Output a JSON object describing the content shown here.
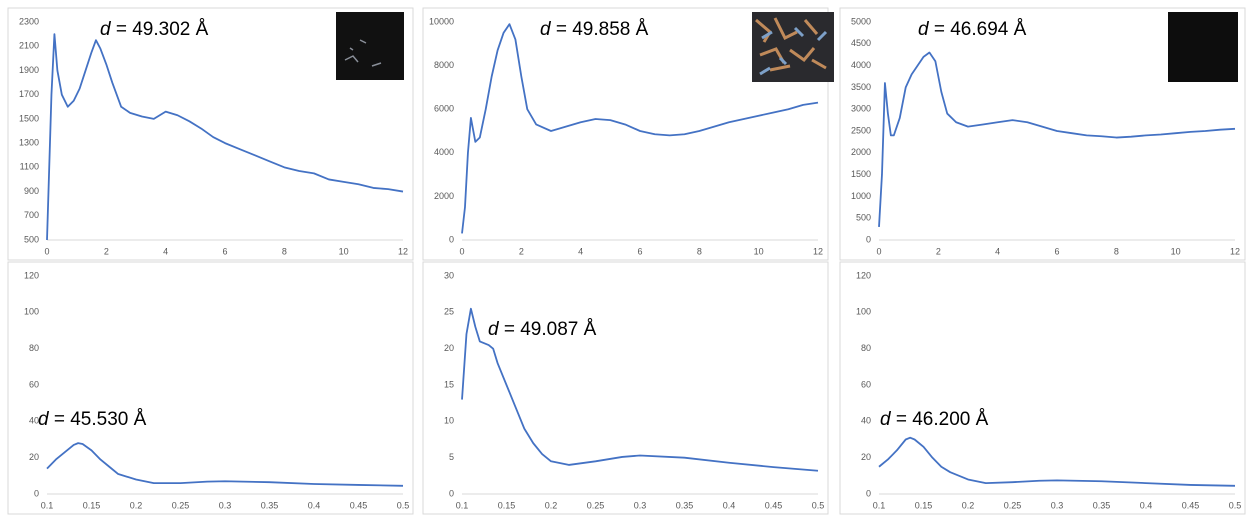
{
  "chart_data": [
    {
      "type": "line",
      "annotation": "d = 49.302 Å",
      "color": "#4472c4",
      "x": [
        0,
        0.15,
        0.25,
        0.35,
        0.5,
        0.7,
        0.9,
        1.1,
        1.3,
        1.5,
        1.65,
        1.8,
        2.0,
        2.2,
        2.5,
        2.8,
        3.2,
        3.6,
        4.0,
        4.4,
        4.8,
        5.2,
        5.6,
        6.0,
        6.5,
        7.0,
        7.5,
        8.0,
        8.5,
        9.0,
        9.5,
        10.0,
        10.5,
        11.0,
        11.5,
        12.0
      ],
      "values": [
        500,
        1700,
        2200,
        1900,
        1700,
        1600,
        1650,
        1750,
        1900,
        2050,
        2150,
        2080,
        1950,
        1800,
        1600,
        1550,
        1520,
        1500,
        1560,
        1530,
        1480,
        1420,
        1350,
        1300,
        1250,
        1200,
        1150,
        1100,
        1070,
        1050,
        1000,
        980,
        960,
        930,
        920,
        900
      ],
      "xlim": [
        0,
        12
      ],
      "xticks": [
        0,
        2,
        4,
        6,
        8,
        10,
        12
      ],
      "ylim": [
        500,
        2300
      ],
      "yticks": [
        500,
        700,
        900,
        1100,
        1300,
        1500,
        1700,
        1900,
        2100,
        2300
      ]
    },
    {
      "type": "line",
      "annotation": "d = 49.858 Å",
      "color": "#4472c4",
      "x": [
        0,
        0.1,
        0.2,
        0.3,
        0.45,
        0.6,
        0.8,
        1.0,
        1.2,
        1.4,
        1.6,
        1.8,
        2.0,
        2.2,
        2.5,
        3.0,
        3.5,
        4.0,
        4.5,
        5.0,
        5.5,
        6.0,
        6.5,
        7.0,
        7.5,
        8.0,
        8.5,
        9.0,
        9.5,
        10.0,
        10.5,
        11.0,
        11.5,
        12.0
      ],
      "values": [
        300,
        1500,
        4000,
        5600,
        4500,
        4700,
        6000,
        7500,
        8700,
        9500,
        9900,
        9200,
        7500,
        6000,
        5300,
        5000,
        5200,
        5400,
        5550,
        5500,
        5300,
        5000,
        4850,
        4800,
        4850,
        5000,
        5200,
        5400,
        5550,
        5700,
        5850,
        6000,
        6200,
        6300
      ],
      "xlim": [
        0,
        12
      ],
      "xticks": [
        0,
        2,
        4,
        6,
        8,
        10,
        12
      ],
      "ylim": [
        0,
        10000
      ],
      "yticks": [
        0,
        2000,
        4000,
        6000,
        8000,
        10000
      ]
    },
    {
      "type": "line",
      "annotation": "d = 46.694 Å",
      "color": "#4472c4",
      "x": [
        0,
        0.1,
        0.2,
        0.3,
        0.4,
        0.5,
        0.7,
        0.9,
        1.1,
        1.3,
        1.5,
        1.7,
        1.9,
        2.1,
        2.3,
        2.6,
        3.0,
        3.5,
        4.0,
        4.5,
        5.0,
        5.5,
        6.0,
        6.5,
        7.0,
        7.5,
        8.0,
        8.5,
        9.0,
        9.5,
        10.0,
        10.5,
        11.0,
        11.5,
        12.0
      ],
      "values": [
        300,
        1500,
        3600,
        2900,
        2400,
        2400,
        2800,
        3500,
        3800,
        4000,
        4200,
        4300,
        4100,
        3400,
        2900,
        2700,
        2600,
        2650,
        2700,
        2750,
        2700,
        2600,
        2500,
        2450,
        2400,
        2380,
        2350,
        2370,
        2400,
        2420,
        2450,
        2480,
        2500,
        2530,
        2550
      ],
      "xlim": [
        0,
        12
      ],
      "xticks": [
        0,
        2,
        4,
        6,
        8,
        10,
        12
      ],
      "ylim": [
        0,
        5000
      ],
      "yticks": [
        0,
        500,
        1000,
        1500,
        2000,
        2500,
        3000,
        3500,
        4000,
        4500,
        5000
      ]
    },
    {
      "type": "line",
      "annotation": "d = 45.530 Å",
      "color": "#4472c4",
      "x": [
        0.1,
        0.11,
        0.12,
        0.13,
        0.135,
        0.14,
        0.15,
        0.16,
        0.17,
        0.18,
        0.2,
        0.22,
        0.25,
        0.28,
        0.3,
        0.35,
        0.4,
        0.45,
        0.5
      ],
      "values": [
        14,
        19,
        23,
        27,
        28,
        27.5,
        24,
        19,
        15,
        11,
        8,
        6,
        6,
        6.8,
        7,
        6.5,
        5.5,
        5,
        4.5
      ],
      "xlim": [
        0.1,
        0.5
      ],
      "xticks": [
        0.1,
        0.15,
        0.2,
        0.25,
        0.3,
        0.35,
        0.4,
        0.45,
        0.5
      ],
      "ylim": [
        0,
        120
      ],
      "yticks": [
        0,
        20,
        40,
        60,
        80,
        100,
        120
      ]
    },
    {
      "type": "line",
      "annotation": "d = 49.087 Å",
      "color": "#4472c4",
      "x": [
        0.1,
        0.105,
        0.11,
        0.115,
        0.12,
        0.13,
        0.135,
        0.14,
        0.15,
        0.16,
        0.17,
        0.18,
        0.19,
        0.2,
        0.22,
        0.25,
        0.28,
        0.3,
        0.35,
        0.4,
        0.45,
        0.5
      ],
      "values": [
        13,
        22,
        25.5,
        23,
        21,
        20.5,
        20,
        18,
        15,
        12,
        9,
        7,
        5.5,
        4.5,
        4,
        4.5,
        5.1,
        5.3,
        5,
        4.3,
        3.7,
        3.2
      ],
      "xlim": [
        0.1,
        0.5
      ],
      "xticks": [
        0.1,
        0.15,
        0.2,
        0.25,
        0.3,
        0.35,
        0.4,
        0.45,
        0.5
      ],
      "ylim": [
        0,
        30
      ],
      "yticks": [
        0,
        5,
        10,
        15,
        20,
        25,
        30
      ]
    },
    {
      "type": "line",
      "annotation": "d = 46.200 Å",
      "color": "#4472c4",
      "x": [
        0.1,
        0.11,
        0.12,
        0.13,
        0.135,
        0.14,
        0.15,
        0.16,
        0.17,
        0.18,
        0.2,
        0.22,
        0.25,
        0.28,
        0.3,
        0.35,
        0.4,
        0.45,
        0.5
      ],
      "values": [
        15,
        19,
        24,
        30,
        31,
        30,
        26,
        20,
        15,
        12,
        8,
        6,
        6.5,
        7.3,
        7.5,
        7,
        6,
        5,
        4.5
      ],
      "xlim": [
        0.1,
        0.5
      ],
      "xticks": [
        0.1,
        0.15,
        0.2,
        0.25,
        0.3,
        0.35,
        0.4,
        0.45,
        0.5
      ],
      "ylim": [
        0,
        120
      ],
      "yticks": [
        0,
        20,
        40,
        60,
        80,
        100,
        120
      ]
    }
  ]
}
